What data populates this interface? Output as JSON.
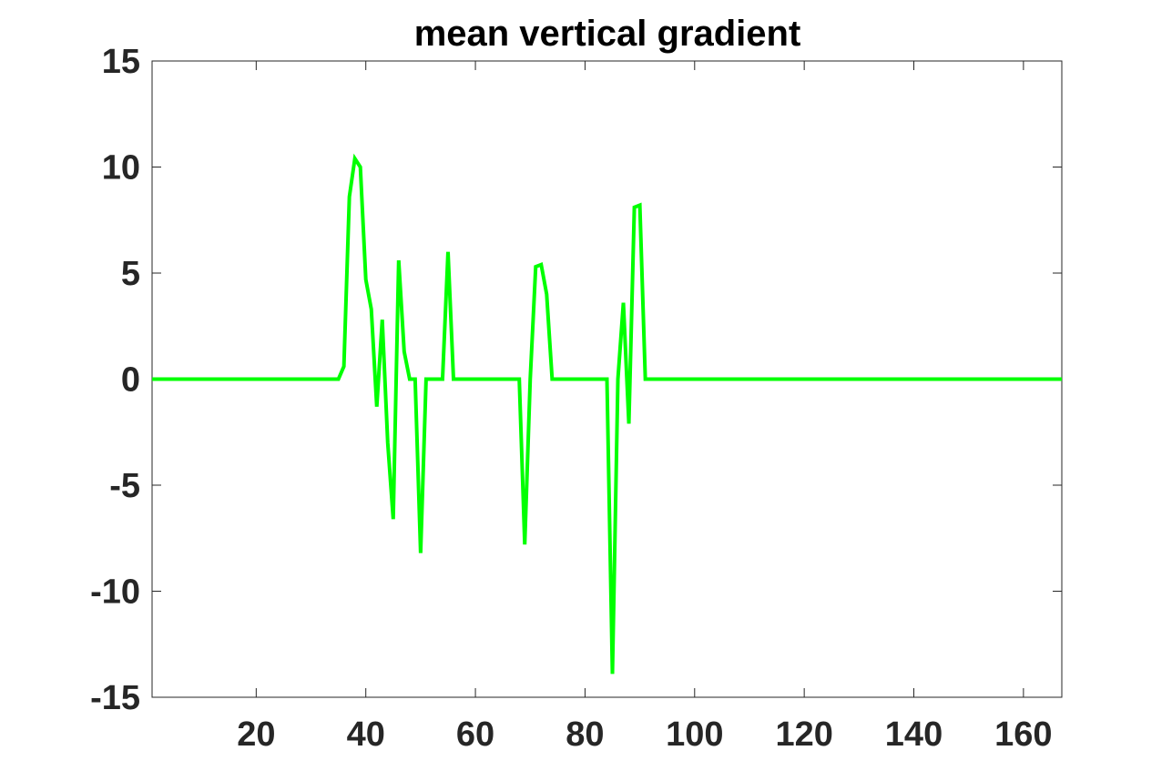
{
  "chart_data": {
    "type": "line",
    "title": "mean vertical gradient",
    "xlabel": "",
    "ylabel": "",
    "xlim": [
      1,
      167
    ],
    "ylim": [
      -15,
      15
    ],
    "xticks": [
      20,
      40,
      60,
      80,
      100,
      120,
      140,
      160
    ],
    "yticks": [
      -15,
      -10,
      -5,
      0,
      5,
      10,
      15
    ],
    "grid": false,
    "line_color": "#00ff00",
    "axis_color": "#262626",
    "series": [
      {
        "x": [
          1,
          35,
          36,
          37,
          38,
          39,
          40,
          41,
          42,
          43,
          44,
          45,
          46,
          47,
          48,
          49,
          50,
          51,
          54,
          55,
          56,
          68,
          69,
          70,
          71,
          72,
          73,
          74,
          84,
          85,
          86,
          87,
          88,
          89,
          90,
          91,
          167
        ],
        "values": [
          0,
          0,
          0.6,
          8.6,
          10.4,
          10.0,
          4.7,
          3.3,
          -1.3,
          2.8,
          -3.0,
          -6.6,
          5.6,
          1.3,
          0.0,
          0.0,
          -8.2,
          0.0,
          0.0,
          6.0,
          0.0,
          0.0,
          -7.8,
          0.0,
          5.3,
          5.4,
          4.0,
          0.0,
          0.0,
          -13.9,
          0.0,
          3.6,
          -2.1,
          8.1,
          8.2,
          0.0,
          0
        ]
      }
    ]
  }
}
